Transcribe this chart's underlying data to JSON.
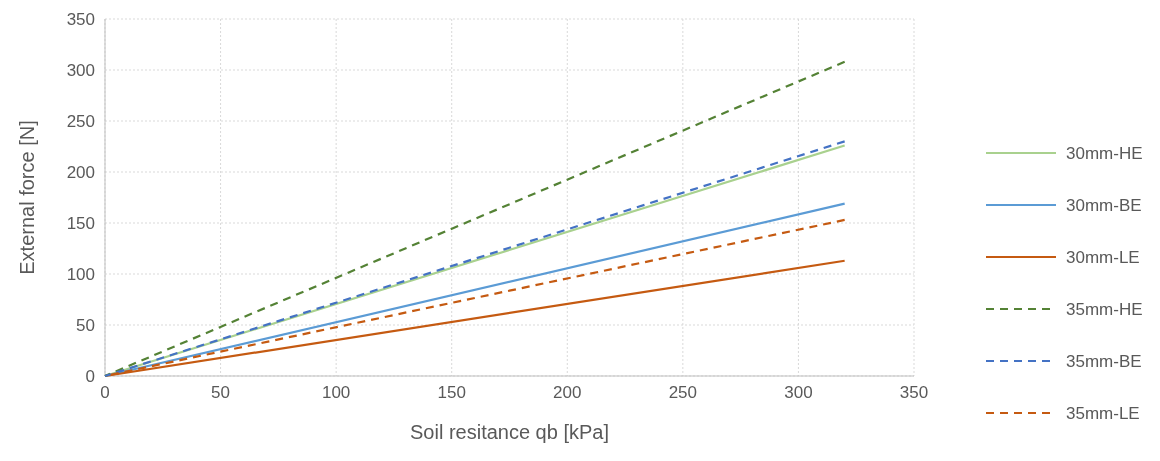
{
  "chart_data": {
    "type": "line",
    "xlabel": "Soil resitance qb [kPa]",
    "ylabel": "External force [N]",
    "x": [
      0,
      320
    ],
    "xlim": [
      0,
      350
    ],
    "ylim": [
      0,
      350
    ],
    "xticks": [
      0,
      50,
      100,
      150,
      200,
      250,
      300,
      350
    ],
    "yticks": [
      0,
      50,
      100,
      150,
      200,
      250,
      300,
      350
    ],
    "grid": true,
    "legend": "right",
    "marker": "none",
    "series": [
      {
        "name": "30mm-HE",
        "color": "#a9d18e",
        "values": [
          0,
          226
        ],
        "line_style": "solid"
      },
      {
        "name": "30mm-BE",
        "color": "#5b9bd5",
        "values": [
          0,
          169
        ],
        "line_style": "solid"
      },
      {
        "name": "30mm-LE",
        "color": "#c55a11",
        "values": [
          0,
          113
        ],
        "line_style": "solid"
      },
      {
        "name": "35mm-HE",
        "color": "#548235",
        "values": [
          0,
          308
        ],
        "line_style": "dashed"
      },
      {
        "name": "35mm-BE",
        "color": "#4472c4",
        "values": [
          0,
          230
        ],
        "line_style": "dashed"
      },
      {
        "name": "35mm-LE",
        "color": "#c55a11",
        "values": [
          0,
          153
        ],
        "line_style": "dashed"
      }
    ]
  }
}
